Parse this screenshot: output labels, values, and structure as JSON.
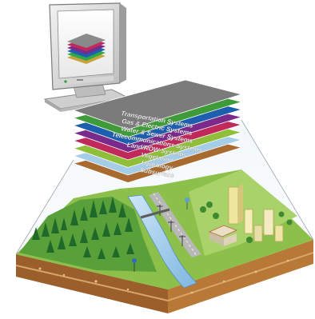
{
  "diagram": {
    "layers": [
      {
        "label": "Transportation Systems",
        "color": "#7b7b7b"
      },
      {
        "label": "Gas & Electric Systems",
        "color": "#3f9a3a"
      },
      {
        "label": "Water & Sewer Systems",
        "color": "#1d5fae"
      },
      {
        "label": "Telecommunications Systems",
        "color": "#7a2a8a"
      },
      {
        "label": "Land/ROW Systems",
        "color": "#c02a5a"
      },
      {
        "label": "Vegetation",
        "color": "#8fbf3a"
      },
      {
        "label": "Hydrology",
        "color": "#a6cde8"
      },
      {
        "label": "Subsurface",
        "color": "#a86a2e"
      }
    ],
    "icons": {
      "monitor": "computer-monitor-icon",
      "terrain": "landscape-block-illustration"
    }
  }
}
